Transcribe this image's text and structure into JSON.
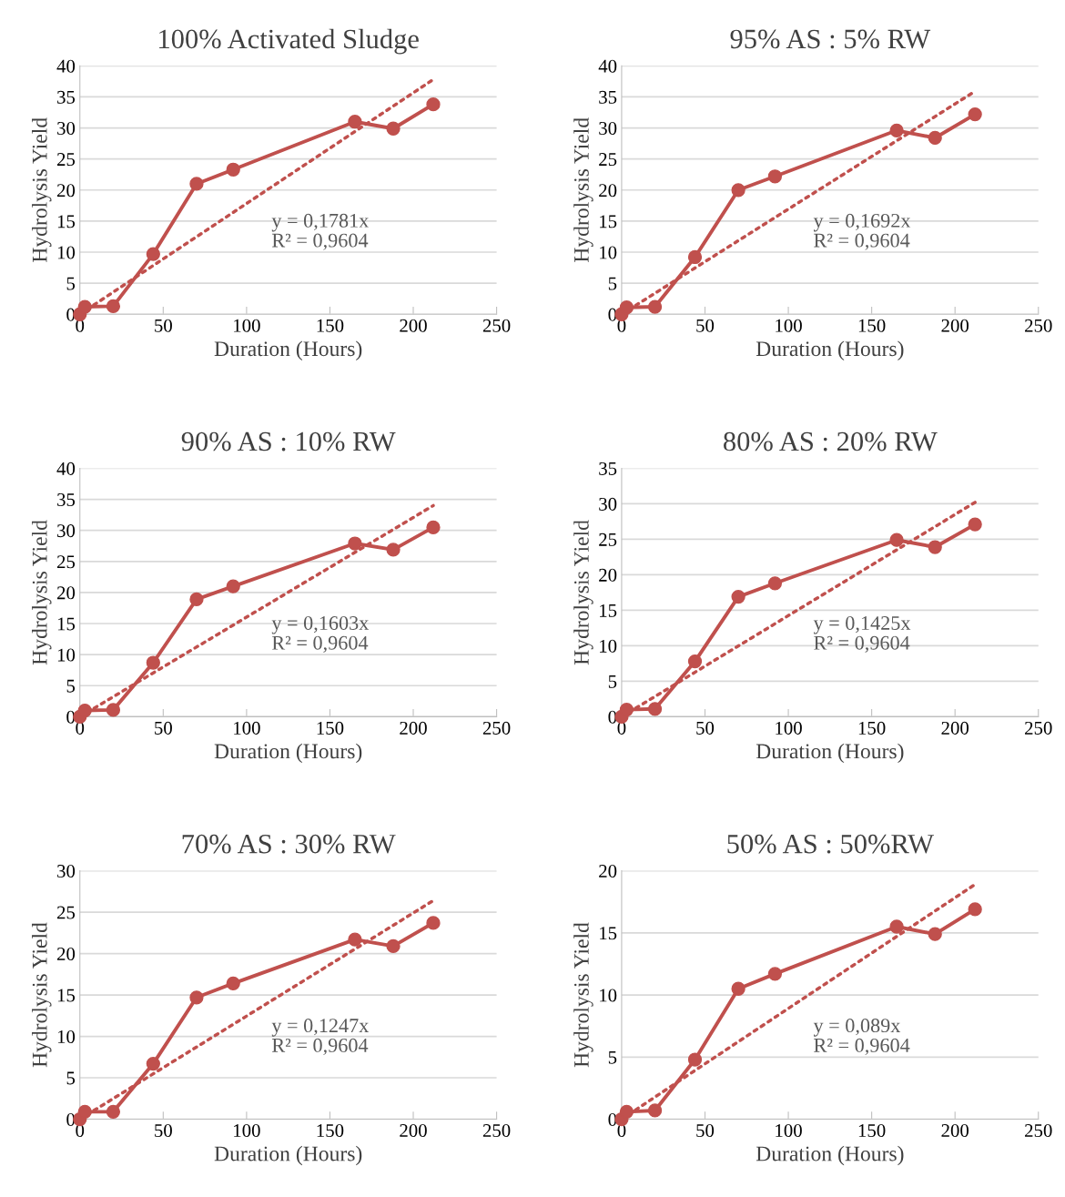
{
  "chart_data": [
    {
      "type": "line",
      "title": "100% Activated Sludge",
      "xlabel": "Duration (Hours)",
      "ylabel": "Hydrolysis Yield",
      "xlim": [
        0,
        250
      ],
      "xticks": [
        0,
        50,
        100,
        150,
        200,
        250
      ],
      "ylim": [
        0,
        40
      ],
      "yticks": [
        0,
        5,
        10,
        15,
        20,
        25,
        30,
        35,
        40
      ],
      "grid": "y",
      "legend": false,
      "annotations": [
        "y = 0,1781x\nR² = 0,9604"
      ],
      "series": [
        {
          "color": "#c0504d",
          "marker": "circle",
          "line_style": "solid",
          "x": [
            0,
            3,
            20,
            44,
            70,
            92,
            165,
            188,
            212
          ],
          "values": [
            0,
            1.2,
            1.3,
            9.7,
            21,
            23.3,
            31,
            29.9,
            33.8
          ]
        },
        {
          "color": "#c0504d",
          "marker": "none",
          "line_style": "dotted",
          "x": [
            0,
            212
          ],
          "values": [
            0,
            37.8
          ]
        }
      ]
    },
    {
      "type": "line",
      "title": "95% AS : 5% RW",
      "xlabel": "Duration (Hours)",
      "ylabel": "Hydrolysis Yield",
      "xlim": [
        0,
        250
      ],
      "xticks": [
        0,
        50,
        100,
        150,
        200,
        250
      ],
      "ylim": [
        0,
        40
      ],
      "yticks": [
        0,
        5,
        10,
        15,
        20,
        25,
        30,
        35,
        40
      ],
      "grid": "y",
      "legend": false,
      "annotations": [
        "y = 0,1692x\nR² = 0,9604"
      ],
      "series": [
        {
          "color": "#c0504d",
          "marker": "circle",
          "line_style": "solid",
          "x": [
            0,
            3,
            20,
            44,
            70,
            92,
            165,
            188,
            212
          ],
          "values": [
            0,
            1.1,
            1.2,
            9.2,
            20,
            22.2,
            29.6,
            28.4,
            32.2
          ]
        },
        {
          "color": "#c0504d",
          "marker": "none",
          "line_style": "dotted",
          "x": [
            0,
            212
          ],
          "values": [
            0,
            35.9
          ]
        }
      ]
    },
    {
      "type": "line",
      "title": "90% AS : 10% RW",
      "xlabel": "Duration (Hours)",
      "ylabel": "Hydrolysis Yield",
      "xlim": [
        0,
        250
      ],
      "xticks": [
        0,
        50,
        100,
        150,
        200,
        250
      ],
      "ylim": [
        0,
        40
      ],
      "yticks": [
        0,
        5,
        10,
        15,
        20,
        25,
        30,
        35,
        40
      ],
      "grid": "y",
      "legend": false,
      "annotations": [
        "y = 0,1603x\nR² = 0,9604"
      ],
      "series": [
        {
          "color": "#c0504d",
          "marker": "circle",
          "line_style": "solid",
          "x": [
            0,
            3,
            20,
            44,
            70,
            92,
            165,
            188,
            212
          ],
          "values": [
            0,
            1.0,
            1.1,
            8.7,
            18.9,
            21.0,
            27.9,
            26.9,
            30.5
          ]
        },
        {
          "color": "#c0504d",
          "marker": "none",
          "line_style": "dotted",
          "x": [
            0,
            212
          ],
          "values": [
            0,
            34.0
          ]
        }
      ]
    },
    {
      "type": "line",
      "title": "80% AS : 20% RW",
      "xlabel": "Duration (Hours)",
      "ylabel": "Hydrolysis Yield",
      "xlim": [
        0,
        250
      ],
      "xticks": [
        0,
        50,
        100,
        150,
        200,
        250
      ],
      "ylim": [
        0,
        35
      ],
      "yticks": [
        0,
        5,
        10,
        15,
        20,
        25,
        30,
        35
      ],
      "grid": "y",
      "legend": false,
      "annotations": [
        "y = 0,1425x\nR² = 0,9604"
      ],
      "series": [
        {
          "color": "#c0504d",
          "marker": "circle",
          "line_style": "solid",
          "x": [
            0,
            3,
            20,
            44,
            70,
            92,
            165,
            188,
            212
          ],
          "values": [
            0,
            1.0,
            1.1,
            7.8,
            16.9,
            18.8,
            24.9,
            23.9,
            27.1
          ]
        },
        {
          "color": "#c0504d",
          "marker": "none",
          "line_style": "dotted",
          "x": [
            0,
            212
          ],
          "values": [
            0,
            30.2
          ]
        }
      ]
    },
    {
      "type": "line",
      "title": "70% AS : 30% RW",
      "xlabel": "Duration (Hours)",
      "ylabel": "Hydrolysis Yield",
      "xlim": [
        0,
        250
      ],
      "xticks": [
        0,
        50,
        100,
        150,
        200,
        250
      ],
      "ylim": [
        0,
        30
      ],
      "yticks": [
        0,
        5,
        10,
        15,
        20,
        25,
        30
      ],
      "grid": "y",
      "legend": false,
      "annotations": [
        "y = 0,1247x\nR² = 0,9604"
      ],
      "series": [
        {
          "color": "#c0504d",
          "marker": "circle",
          "line_style": "solid",
          "x": [
            0,
            3,
            20,
            44,
            70,
            92,
            165,
            188,
            212
          ],
          "values": [
            0,
            0.9,
            0.9,
            6.7,
            14.7,
            16.4,
            21.7,
            20.9,
            23.7
          ]
        },
        {
          "color": "#c0504d",
          "marker": "none",
          "line_style": "dotted",
          "x": [
            0,
            212
          ],
          "values": [
            0,
            26.4
          ]
        }
      ]
    },
    {
      "type": "line",
      "title": "50% AS : 50%RW",
      "xlabel": "Duration (Hours)",
      "ylabel": "Hydrolysis Yield",
      "xlim": [
        0,
        250
      ],
      "xticks": [
        0,
        50,
        100,
        150,
        200,
        250
      ],
      "ylim": [
        0,
        20
      ],
      "yticks": [
        0,
        5,
        10,
        15,
        20
      ],
      "grid": "y",
      "legend": false,
      "annotations": [
        "y = 0,089x\nR² = 0,9604"
      ],
      "series": [
        {
          "color": "#c0504d",
          "marker": "circle",
          "line_style": "solid",
          "x": [
            0,
            3,
            20,
            44,
            70,
            92,
            165,
            188,
            212
          ],
          "values": [
            0,
            0.6,
            0.7,
            4.8,
            10.5,
            11.7,
            15.5,
            14.9,
            16.9
          ]
        },
        {
          "color": "#c0504d",
          "marker": "none",
          "line_style": "dotted",
          "x": [
            0,
            212
          ],
          "values": [
            0,
            18.9
          ]
        }
      ]
    }
  ]
}
